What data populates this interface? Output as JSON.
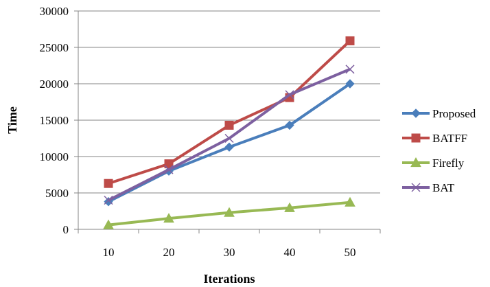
{
  "chart_data": {
    "type": "line",
    "xlabel": "Iterations",
    "ylabel": "Time",
    "x": [
      10,
      20,
      30,
      40,
      50
    ],
    "ylim": [
      0,
      30000
    ],
    "yticks": [
      0,
      5000,
      10000,
      15000,
      20000,
      25000,
      30000
    ],
    "grid": "horizontal",
    "legend_position": "right",
    "series": [
      {
        "name": "Proposed",
        "values": [
          3800,
          8000,
          11300,
          14300,
          20000
        ],
        "color": "#4a7ebb",
        "marker": "diamond"
      },
      {
        "name": "BATFF",
        "values": [
          6300,
          9000,
          14300,
          18100,
          25900
        ],
        "color": "#be4b48",
        "marker": "square"
      },
      {
        "name": "Firefly",
        "values": [
          600,
          1500,
          2300,
          2950,
          3700
        ],
        "color": "#98b954",
        "marker": "triangle"
      },
      {
        "name": "BAT",
        "values": [
          4000,
          8200,
          12500,
          18500,
          22000
        ],
        "color": "#7d60a0",
        "marker": "x"
      }
    ]
  }
}
